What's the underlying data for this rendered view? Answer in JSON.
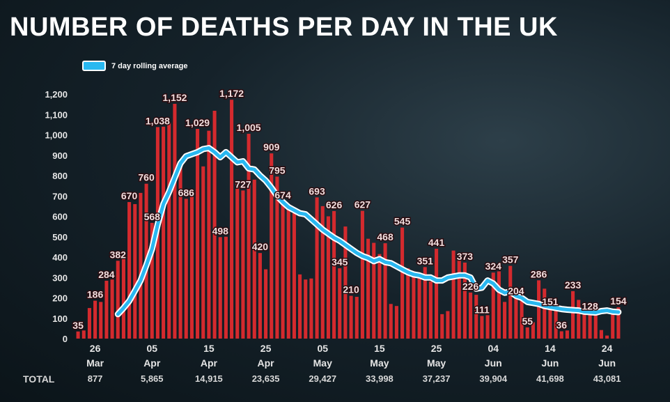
{
  "title": "NUMBER OF DEATHS PER DAY IN THE UK",
  "legend": {
    "label": "7 day rolling average"
  },
  "colors": {
    "bar": "#d42a2e",
    "line": "#29b8f0",
    "line_edge": "#ffffff"
  },
  "chart_data": {
    "type": "bar",
    "start_date": "2020-03-23",
    "ylim": [
      0,
      1200
    ],
    "yticks": [
      "0",
      "100",
      "200",
      "300",
      "400",
      "500",
      "600",
      "700",
      "800",
      "900",
      "1,000",
      "1,100",
      "1,200"
    ],
    "xticks": [
      {
        "day": "26",
        "month": "Mar"
      },
      {
        "day": "05",
        "month": "Apr"
      },
      {
        "day": "15",
        "month": "Apr"
      },
      {
        "day": "25",
        "month": "Apr"
      },
      {
        "day": "05",
        "month": "May"
      },
      {
        "day": "15",
        "month": "May"
      },
      {
        "day": "25",
        "month": "May"
      },
      {
        "day": "04",
        "month": "Jun"
      },
      {
        "day": "14",
        "month": "Jun"
      },
      {
        "day": "24",
        "month": "Jun"
      }
    ],
    "series": [
      {
        "type": "bar",
        "values": [
          35,
          40,
          150,
          186,
          180,
          284,
          290,
          382,
          390,
          670,
          660,
          715,
          760,
          568,
          1038,
          1040,
          1060,
          1152,
          840,
          686,
          700,
          1029,
          845,
          1020,
          1118,
          498,
          500,
          1172,
          760,
          727,
          1005,
          780,
          420,
          340,
          909,
          795,
          674,
          660,
          615,
          315,
          290,
          295,
          693,
          650,
          600,
          626,
          345,
          550,
          210,
          205,
          627,
          490,
          470,
          415,
          468,
          170,
          160,
          545,
          345,
          330,
          320,
          351,
          280,
          441,
          120,
          135,
          432,
          390,
          373,
          226,
          215,
          111,
          115,
          324,
          330,
          180,
          357,
          204,
          200,
          55,
          80,
          286,
          245,
          151,
          160,
          36,
          40,
          233,
          190,
          150,
          128,
          160,
          42,
          15,
          130,
          154
        ]
      },
      {
        "type": "line",
        "name": "7 day rolling average",
        "values": [
          null,
          null,
          null,
          null,
          null,
          null,
          null,
          120,
          150,
          185,
          235,
          285,
          360,
          440,
          560,
          660,
          720,
          790,
          860,
          895,
          905,
          915,
          930,
          935,
          915,
          890,
          915,
          890,
          865,
          870,
          835,
          830,
          800,
          775,
          740,
          700,
          670,
          645,
          630,
          615,
          610,
          585,
          560,
          535,
          515,
          495,
          480,
          460,
          440,
          420,
          405,
          395,
          380,
          390,
          375,
          370,
          355,
          340,
          325,
          315,
          310,
          300,
          300,
          285,
          285,
          300,
          305,
          310,
          310,
          300,
          245,
          250,
          285,
          270,
          240,
          225,
          230,
          210,
          200,
          180,
          175,
          170,
          160,
          155,
          150,
          145,
          142,
          140,
          138,
          132,
          130,
          128,
          135,
          138,
          132,
          130
        ]
      }
    ],
    "data_labels": [
      {
        "i": 0,
        "text": "35"
      },
      {
        "i": 3,
        "text": "186"
      },
      {
        "i": 5,
        "text": "284"
      },
      {
        "i": 7,
        "text": "382"
      },
      {
        "i": 9,
        "text": "670"
      },
      {
        "i": 12,
        "text": "760"
      },
      {
        "i": 13,
        "text": "568"
      },
      {
        "i": 14,
        "text": "1,038"
      },
      {
        "i": 17,
        "text": "1,152"
      },
      {
        "i": 19,
        "text": "686"
      },
      {
        "i": 21,
        "text": "1,029"
      },
      {
        "i": 25,
        "text": "498"
      },
      {
        "i": 27,
        "text": "1,172"
      },
      {
        "i": 29,
        "text": "727"
      },
      {
        "i": 30,
        "text": "1,005"
      },
      {
        "i": 32,
        "text": "420"
      },
      {
        "i": 34,
        "text": "909"
      },
      {
        "i": 35,
        "text": "795"
      },
      {
        "i": 36,
        "text": "674"
      },
      {
        "i": 42,
        "text": "693"
      },
      {
        "i": 45,
        "text": "626"
      },
      {
        "i": 46,
        "text": "345"
      },
      {
        "i": 48,
        "text": "210"
      },
      {
        "i": 50,
        "text": "627"
      },
      {
        "i": 54,
        "text": "468"
      },
      {
        "i": 57,
        "text": "545"
      },
      {
        "i": 61,
        "text": "351"
      },
      {
        "i": 63,
        "text": "441"
      },
      {
        "i": 68,
        "text": "373"
      },
      {
        "i": 69,
        "text": "226"
      },
      {
        "i": 71,
        "text": "111"
      },
      {
        "i": 73,
        "text": "324"
      },
      {
        "i": 76,
        "text": "357"
      },
      {
        "i": 77,
        "text": "204"
      },
      {
        "i": 79,
        "text": "55"
      },
      {
        "i": 81,
        "text": "286"
      },
      {
        "i": 83,
        "text": "151"
      },
      {
        "i": 85,
        "text": "36"
      },
      {
        "i": 87,
        "text": "233"
      },
      {
        "i": 90,
        "text": "128"
      },
      {
        "i": 95,
        "text": "154"
      }
    ],
    "totals": {
      "label": "TOTAL",
      "values": [
        "877",
        "5,865",
        "14,915",
        "23,635",
        "29,427",
        "33,998",
        "37,237",
        "39,904",
        "41,698",
        "43,081"
      ]
    }
  }
}
